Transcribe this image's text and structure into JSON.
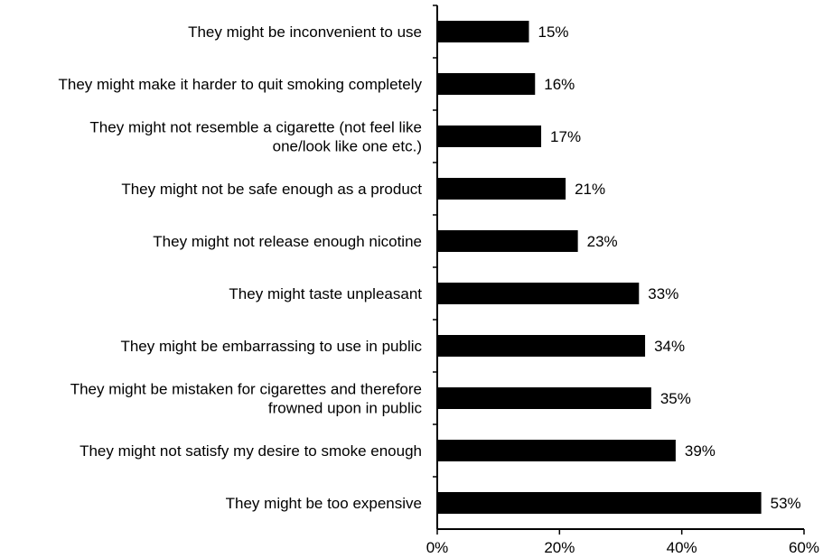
{
  "chart_data": {
    "type": "bar",
    "orientation": "horizontal",
    "categories": [
      [
        "They might be inconvenient to use"
      ],
      [
        "They might make it harder to quit smoking completely"
      ],
      [
        "They might not resemble a cigarette (not feel like",
        "one/look like one etc.)"
      ],
      [
        "They might not be safe enough as a product"
      ],
      [
        "They might not release enough nicotine"
      ],
      [
        "They might taste unpleasant"
      ],
      [
        "They might be embarrassing to use in public"
      ],
      [
        "They might be mistaken for cigarettes and therefore",
        "frowned upon in public"
      ],
      [
        "They might not satisfy my desire to smoke enough"
      ],
      [
        "They might be too expensive"
      ]
    ],
    "values": [
      15,
      16,
      17,
      21,
      23,
      33,
      34,
      35,
      39,
      53
    ],
    "data_labels": [
      "15%",
      "16%",
      "17%",
      "21%",
      "23%",
      "33%",
      "34%",
      "35%",
      "39%",
      "53%"
    ],
    "xlim": [
      0,
      60
    ],
    "xticks": [
      0,
      20,
      40,
      60
    ],
    "xtick_labels": [
      "0%",
      "20%",
      "40%",
      "60%"
    ],
    "title": "",
    "xlabel": "",
    "ylabel": "",
    "grid": false,
    "legend": "none",
    "bar_color": "#000000",
    "axis_color": "#000000"
  }
}
